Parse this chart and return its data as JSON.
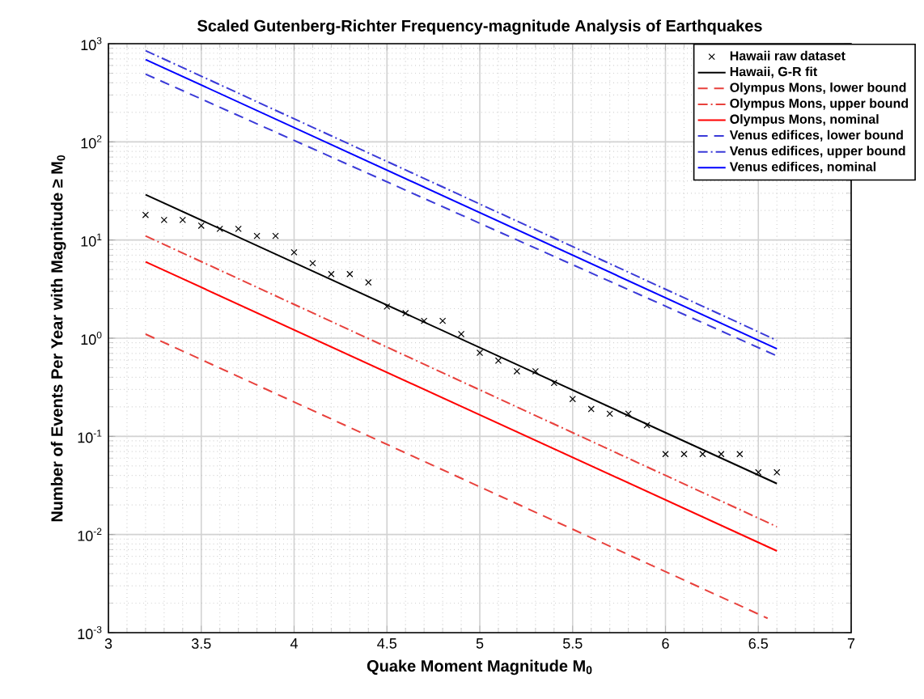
{
  "chart_data": {
    "type": "line",
    "title": "Scaled Gutenberg-Richter Frequency-magnitude Analysis of Earthquakes",
    "xlabel": "Quake Moment Magnitude M$_{0}$",
    "ylabel": "Number of Events Per Year with Magnitude ≥ M$_{0}$",
    "log": "y",
    "grid": true,
    "legend": "top right",
    "xlim": [
      3,
      7
    ],
    "xticks": [
      3,
      3.5,
      4,
      4.5,
      5,
      5.5,
      6,
      6.5,
      7
    ],
    "ylim": [
      0.001,
      1000
    ],
    "yticks": [
      {
        "value": 0.001,
        "label": "10$^{-3}$"
      },
      {
        "value": 0.01,
        "label": "10$^{-2}$"
      },
      {
        "value": 0.1,
        "label": "10$^{-1}$"
      },
      {
        "value": 1,
        "label": "10$^{0}$"
      },
      {
        "value": 10,
        "label": "10$^{1}$"
      },
      {
        "value": 100,
        "label": "10$^{2}$"
      },
      {
        "value": 1000,
        "label": "10$^{3}$"
      }
    ],
    "series": [
      {
        "name": "Hawaii raw dataset",
        "type": "scatter",
        "marker": "cross",
        "color": "#000000",
        "x": [
          3.2,
          3.3,
          3.4,
          3.5,
          3.6,
          3.7,
          3.8,
          3.9,
          4.0,
          4.1,
          4.2,
          4.3,
          4.4,
          4.5,
          4.6,
          4.7,
          4.8,
          4.9,
          5.0,
          5.1,
          5.2,
          5.3,
          5.4,
          5.5,
          5.6,
          5.7,
          5.8,
          5.9,
          6.0,
          6.1,
          6.2,
          6.3,
          6.4,
          6.5,
          6.6
        ],
        "values": [
          18,
          16,
          16,
          14,
          13,
          13,
          11,
          11,
          7.5,
          5.8,
          4.5,
          4.5,
          3.7,
          2.1,
          1.8,
          1.5,
          1.5,
          1.1,
          0.71,
          0.59,
          0.46,
          0.46,
          0.35,
          0.24,
          0.19,
          0.17,
          0.17,
          0.13,
          0.066,
          0.066,
          0.066,
          0.066,
          0.066,
          0.043,
          0.043
        ]
      },
      {
        "name": "Hawaii, G-R fit",
        "line_style": "solid",
        "color": "#000000",
        "x": [
          3.2,
          6.6
        ],
        "values": [
          29,
          0.033
        ]
      },
      {
        "name": "Olympus Mons, lower bound",
        "line_style": "dashed",
        "color": "#e8413c",
        "x": [
          3.2,
          6.55
        ],
        "values": [
          1.1,
          0.0014
        ]
      },
      {
        "name": "Olympus Mons, upper bound",
        "line_style": "dashdot",
        "color": "#e8413c",
        "x": [
          3.2,
          6.6
        ],
        "values": [
          11,
          0.012
        ]
      },
      {
        "name": "Olympus Mons, nominal",
        "line_style": "solid",
        "color": "#ff0000",
        "x": [
          3.2,
          6.6
        ],
        "values": [
          6,
          0.0068
        ]
      },
      {
        "name": "Venus edifices, lower bound",
        "line_style": "dashed",
        "color": "#3a3ad8",
        "x": [
          3.2,
          6.6
        ],
        "values": [
          490,
          0.66
        ]
      },
      {
        "name": "Venus edifices, upper bound",
        "line_style": "dashdot",
        "color": "#3a3ad8",
        "x": [
          3.2,
          6.6
        ],
        "values": [
          850,
          0.95
        ]
      },
      {
        "name": "Venus edifices, nominal",
        "line_style": "solid",
        "color": "#0000ff",
        "x": [
          3.2,
          6.6
        ],
        "values": [
          690,
          0.78
        ]
      }
    ]
  }
}
